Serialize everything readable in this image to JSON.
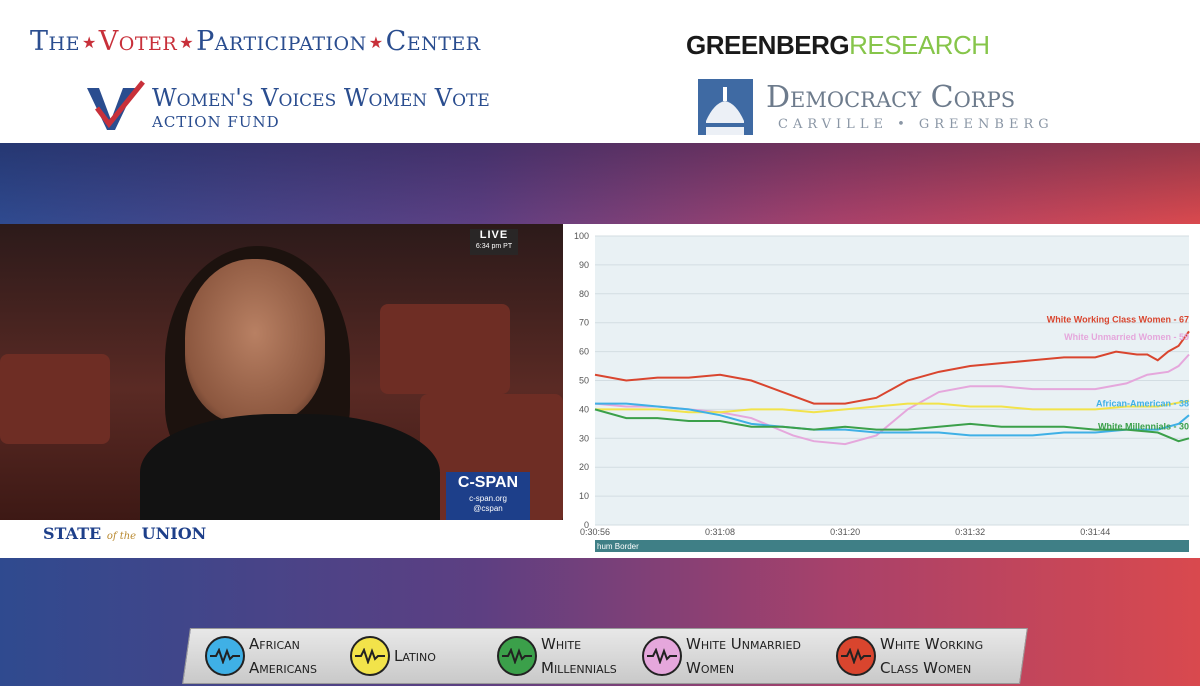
{
  "header": {
    "vpc": {
      "word1": "The",
      "word2": "Voter",
      "word3": "Participation",
      "word4": "Center"
    },
    "wvwv": {
      "title": "Women's Voices Women Vote",
      "subtitle": "Action Fund"
    },
    "greenberg": {
      "part1": "GREENBERG",
      "part2": "RESEARCH"
    },
    "democracy_corps": {
      "title": "Democracy Corps",
      "subtitle": "CARVILLE • GREENBERG"
    }
  },
  "video": {
    "live_label": "LIVE",
    "live_time": "6:34 pm PT",
    "cspan_label": "C-SPAN",
    "cspan_url": "c-span.org",
    "cspan_handle": "@cspan",
    "sotu_part1": "STATE",
    "sotu_of_the": "of the",
    "sotu_part2": "UNION"
  },
  "chart_data": {
    "type": "line",
    "title": "",
    "xlabel": "",
    "ylabel": "",
    "ylim": [
      0,
      100
    ],
    "yticks": [
      0,
      10,
      20,
      30,
      40,
      50,
      60,
      70,
      80,
      90,
      100
    ],
    "xlim": [
      0,
      57
    ],
    "xticks": [
      {
        "t": 0,
        "label": "0:30:56"
      },
      {
        "t": 12,
        "label": "0:31:08"
      },
      {
        "t": 24,
        "label": "0:31:20"
      },
      {
        "t": 36,
        "label": "0:31:32"
      },
      {
        "t": 48,
        "label": "0:31:44"
      }
    ],
    "grid": true,
    "annotation": "hum Border",
    "series": [
      {
        "name": "White Working Class Women - 67",
        "color": "#d9452e",
        "x": [
          0,
          3,
          6,
          9,
          12,
          15,
          18,
          21,
          24,
          27,
          30,
          33,
          36,
          39,
          42,
          45,
          48,
          50,
          52,
          53,
          54,
          55,
          56,
          57
        ],
        "y": [
          52,
          50,
          51,
          51,
          52,
          50,
          46,
          42,
          42,
          44,
          50,
          53,
          55,
          56,
          57,
          58,
          58,
          60,
          59,
          59,
          57,
          60,
          62,
          67
        ]
      },
      {
        "name": "White Unmarried Women - 59",
        "color": "#e5a7dc",
        "x": [
          0,
          3,
          6,
          9,
          12,
          15,
          17,
          19,
          21,
          24,
          27,
          30,
          33,
          36,
          39,
          42,
          45,
          48,
          51,
          53,
          55,
          56,
          57
        ],
        "y": [
          42,
          41,
          41,
          40,
          39,
          37,
          34,
          31,
          29,
          28,
          31,
          40,
          46,
          48,
          48,
          47,
          47,
          47,
          49,
          52,
          53,
          55,
          59
        ]
      },
      {
        "name": "Latino",
        "color": "#f2e34a",
        "x": [
          0,
          3,
          6,
          9,
          12,
          15,
          18,
          21,
          24,
          27,
          30,
          33,
          36,
          39,
          42,
          45,
          48,
          51,
          54,
          57
        ],
        "y": [
          40,
          40,
          40,
          39,
          39,
          40,
          40,
          39,
          40,
          41,
          42,
          42,
          41,
          41,
          40,
          40,
          40,
          41,
          41,
          43
        ]
      },
      {
        "name": "African-American - 38",
        "color": "#3fb0e6",
        "x": [
          0,
          3,
          6,
          9,
          12,
          15,
          18,
          21,
          24,
          27,
          30,
          33,
          36,
          39,
          42,
          45,
          48,
          51,
          54,
          56,
          57
        ],
        "y": [
          42,
          42,
          41,
          40,
          38,
          35,
          34,
          33,
          33,
          32,
          32,
          32,
          31,
          31,
          31,
          32,
          32,
          33,
          33,
          35,
          38
        ]
      },
      {
        "name": "White Millennials - 30",
        "color": "#3ba04a",
        "x": [
          0,
          3,
          6,
          9,
          12,
          15,
          18,
          21,
          24,
          27,
          30,
          33,
          36,
          39,
          42,
          45,
          48,
          51,
          54,
          56,
          57
        ],
        "y": [
          40,
          37,
          37,
          36,
          36,
          34,
          34,
          33,
          34,
          33,
          33,
          34,
          35,
          34,
          34,
          34,
          33,
          33,
          32,
          29,
          30
        ]
      }
    ],
    "labels": [
      {
        "text": "White Working Class Women - 67",
        "series": 0,
        "y": 70
      },
      {
        "text": "White Unmarried Women - 59",
        "series": 1,
        "y": 64
      },
      {
        "text": "African-American - 38",
        "series": 3,
        "y": 41
      },
      {
        "text": "White Millennials - 30",
        "series": 4,
        "y": 33
      }
    ]
  },
  "legend": [
    {
      "line1": "African",
      "line2": "Americans",
      "color": "#3fb0e6"
    },
    {
      "line1": "Latino",
      "line2": "",
      "color": "#f2e34a"
    },
    {
      "line1": "White",
      "line2": "Millennials",
      "color": "#3ba04a"
    },
    {
      "line1": "White Unmarried",
      "line2": "Women",
      "color": "#e5a7dc"
    },
    {
      "line1": "White Working",
      "line2": "Class Women",
      "color": "#d9452e"
    }
  ]
}
